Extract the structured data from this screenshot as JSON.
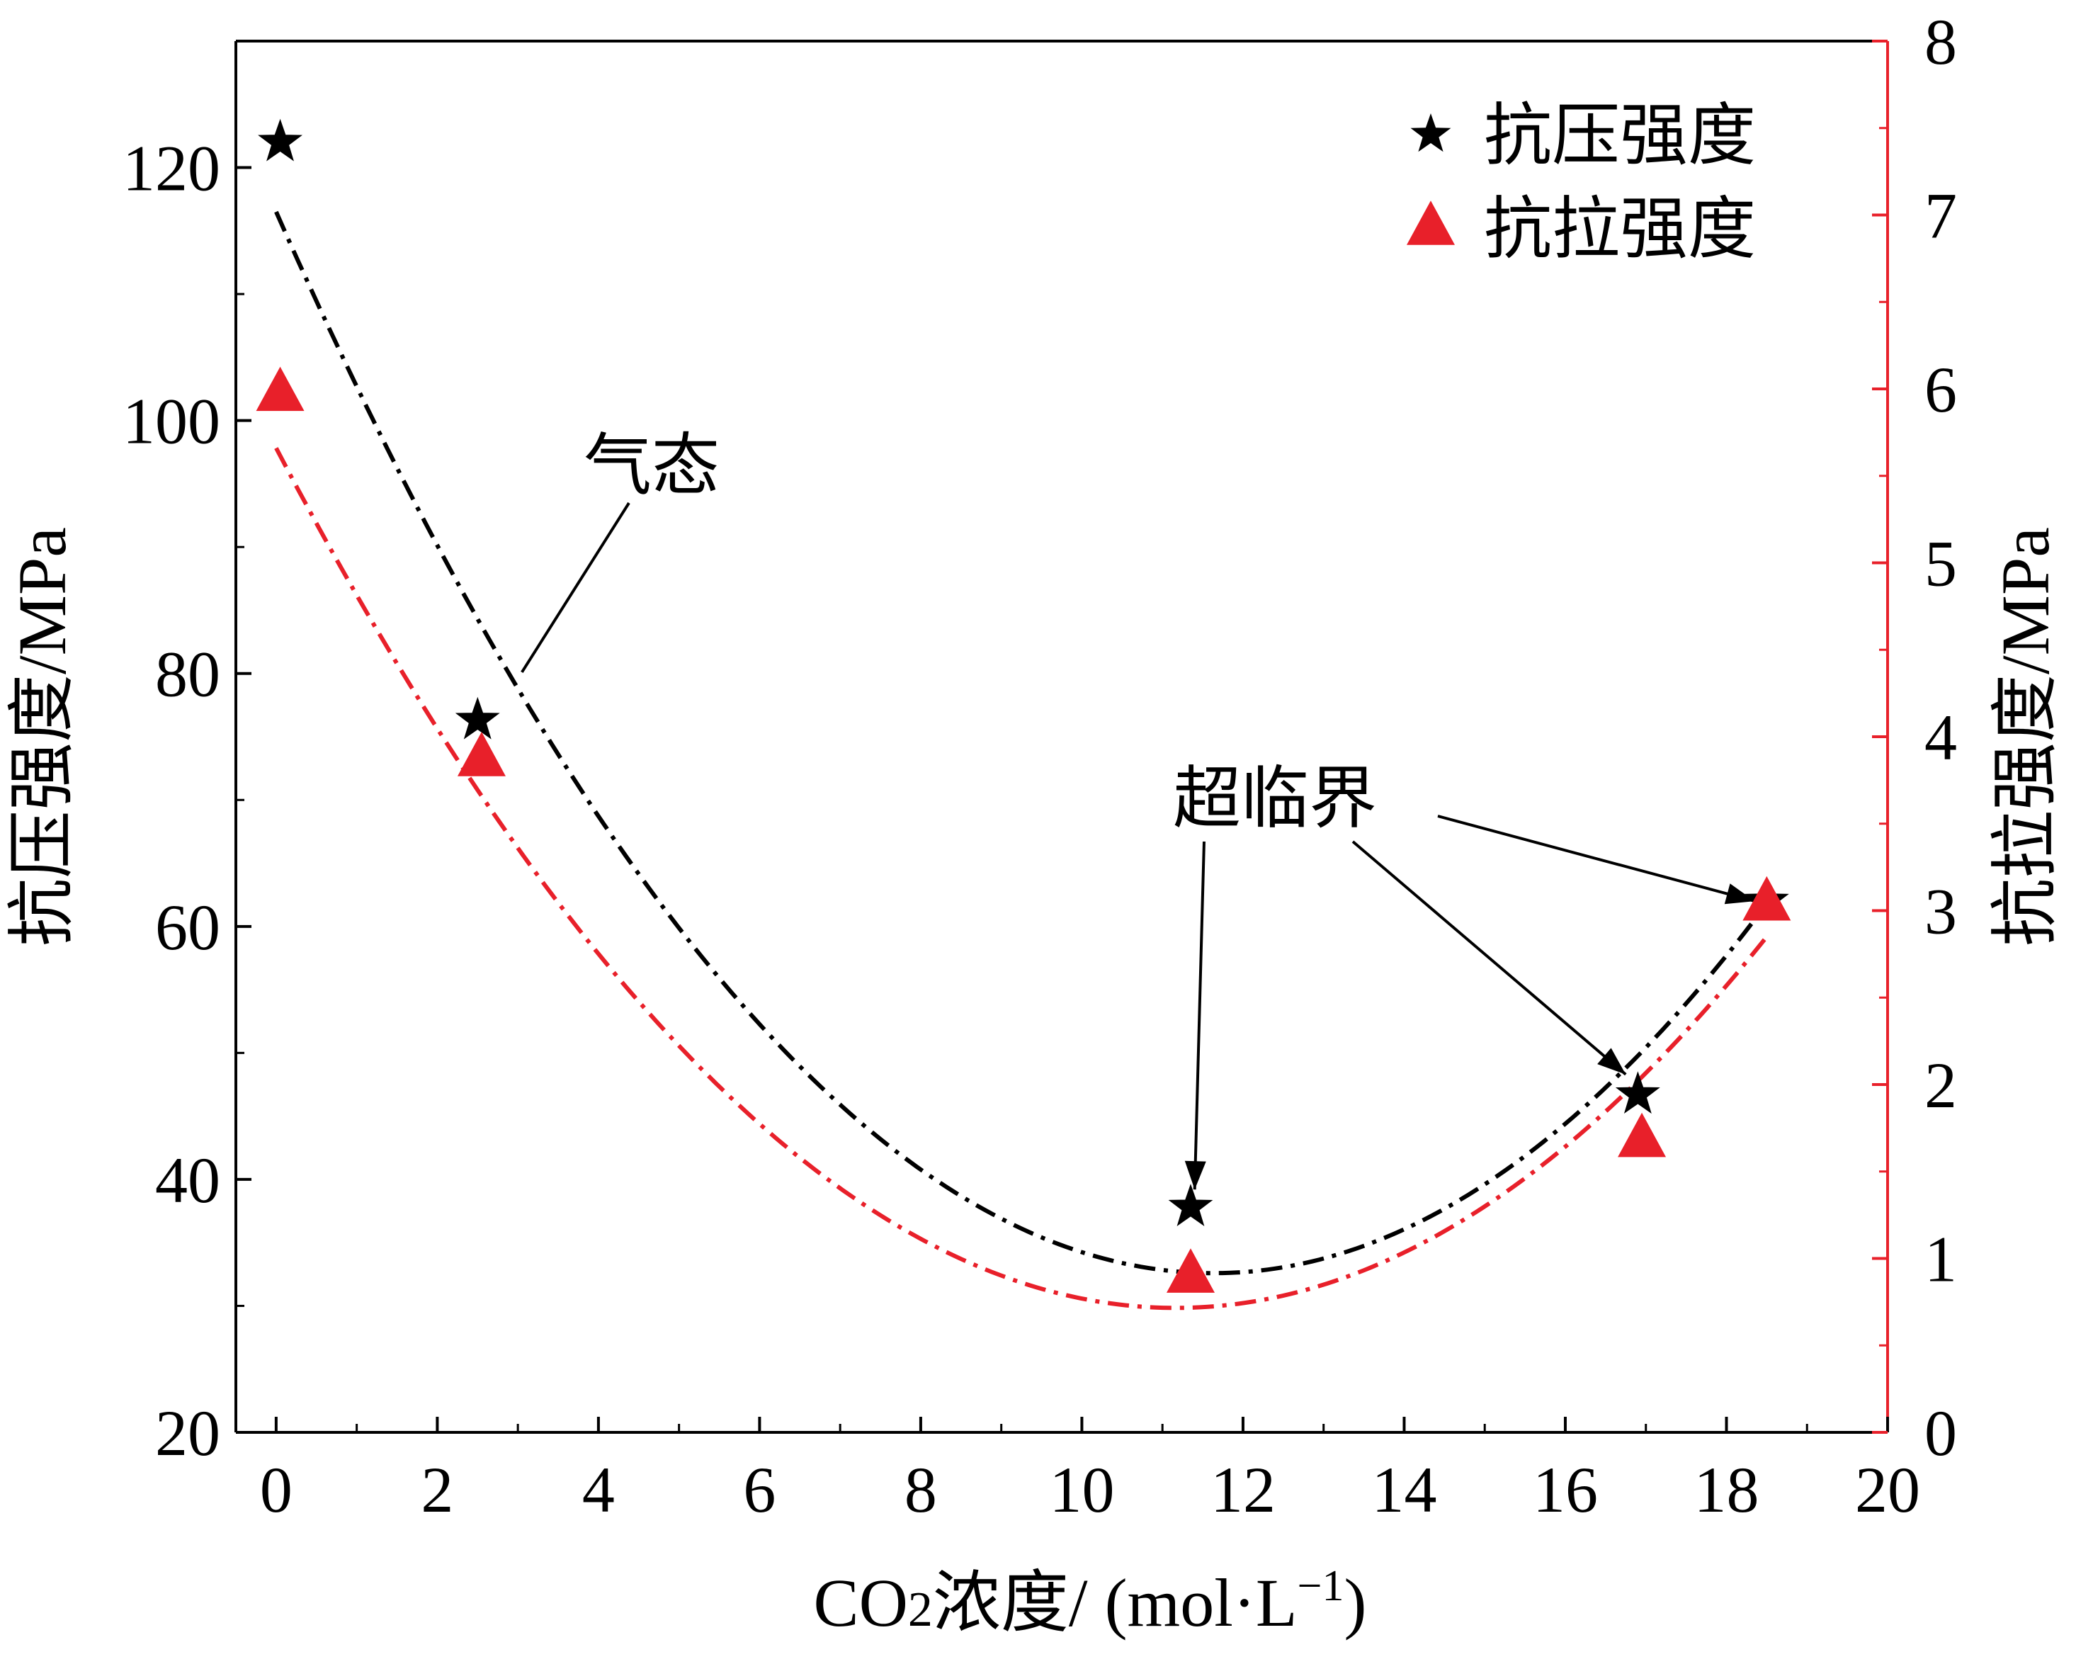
{
  "chart_data": {
    "type": "scatter",
    "xlabel": {
      "prefix": "CO",
      "sub": "2",
      "middle": "浓度/ (mol·L",
      "sup": "−1",
      "suffix": ")"
    },
    "ylabel_left": "抗压强度/MPa",
    "ylabel_right": "抗拉强度/MPa",
    "xlim": [
      -0.5,
      20
    ],
    "ylim_left": [
      20,
      130
    ],
    "ylim_right": [
      0,
      8
    ],
    "xticks": [
      "0",
      "2",
      "4",
      "6",
      "8",
      "10",
      "12",
      "14",
      "16",
      "18",
      "20"
    ],
    "yticks_left": [
      "20",
      "40",
      "60",
      "80",
      "100",
      "120"
    ],
    "yticks_right": [
      "0",
      "1",
      "2",
      "3",
      "4",
      "5",
      "6",
      "7",
      "8"
    ],
    "legend_position": "top-right",
    "colors": {
      "compressive": "#000000",
      "tensile": "#e8202a",
      "right_axis": "#e8202a"
    },
    "series": [
      {
        "name": "抗压强度",
        "axis": "left",
        "marker": "star",
        "x": [
          0.05,
          2.5,
          11.35,
          16.9,
          18.5
        ],
        "y": [
          122,
          76.3,
          37.8,
          46.7,
          62
        ]
      },
      {
        "name": "抗拉强度",
        "axis": "right",
        "marker": "triangle",
        "x": [
          0.05,
          2.55,
          11.35,
          16.95,
          18.5
        ],
        "y": [
          5.97,
          3.87,
          0.9,
          1.68,
          3.04
        ]
      }
    ],
    "fits": [
      {
        "series": "抗压强度",
        "axis": "left",
        "x": [
          0,
          11.5,
          18.5
        ],
        "y": [
          116.5,
          32.6,
          61.8
        ]
      },
      {
        "series": "抗拉强度",
        "axis": "right",
        "x": [
          0,
          11.5,
          18.5
        ],
        "y": [
          5.66,
          0.72,
          2.85
        ]
      }
    ],
    "annotations": [
      {
        "text": "气态",
        "target": {
          "x": 3.05,
          "y": 80.1,
          "axis": "left"
        }
      },
      {
        "text": "超临界",
        "targets": [
          {
            "x": 11.4,
            "y": 39.2,
            "axis": "left"
          },
          {
            "x": 16.75,
            "y": 48.3,
            "axis": "left"
          },
          {
            "x": 18.35,
            "y": 62,
            "axis": "left"
          }
        ]
      }
    ]
  }
}
